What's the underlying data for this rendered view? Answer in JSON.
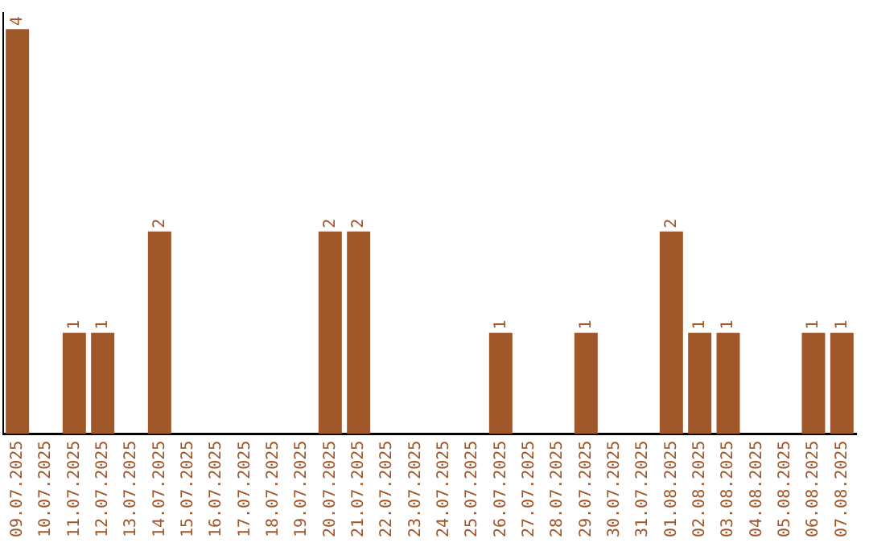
{
  "chart_data": {
    "type": "bar",
    "categories": [
      "09.07.2025",
      "10.07.2025",
      "11.07.2025",
      "12.07.2025",
      "13.07.2025",
      "14.07.2025",
      "15.07.2025",
      "16.07.2025",
      "17.07.2025",
      "18.07.2025",
      "19.07.2025",
      "20.07.2025",
      "21.07.2025",
      "22.07.2025",
      "23.07.2025",
      "24.07.2025",
      "25.07.2025",
      "26.07.2025",
      "27.07.2025",
      "28.07.2025",
      "29.07.2025",
      "30.07.2025",
      "31.07.2025",
      "01.08.2025",
      "02.08.2025",
      "03.08.2025",
      "04.08.2025",
      "05.08.2025",
      "06.08.2025",
      "07.08.2025"
    ],
    "values": [
      4,
      0,
      1,
      1,
      0,
      2,
      0,
      0,
      0,
      0,
      0,
      2,
      2,
      0,
      0,
      0,
      0,
      1,
      0,
      0,
      1,
      0,
      0,
      2,
      1,
      1,
      0,
      0,
      1,
      1
    ],
    "value_labels": [
      "4",
      null,
      "1",
      "1",
      null,
      "2",
      null,
      null,
      null,
      null,
      null,
      "2",
      "2",
      null,
      null,
      null,
      null,
      "1",
      null,
      null,
      "1",
      null,
      null,
      "2",
      "1",
      "1",
      null,
      null,
      "1",
      "1"
    ],
    "color": "#a0572a",
    "ylim": [
      0,
      4.16
    ],
    "tick_labels": "x",
    "grid": false,
    "legend": false
  }
}
